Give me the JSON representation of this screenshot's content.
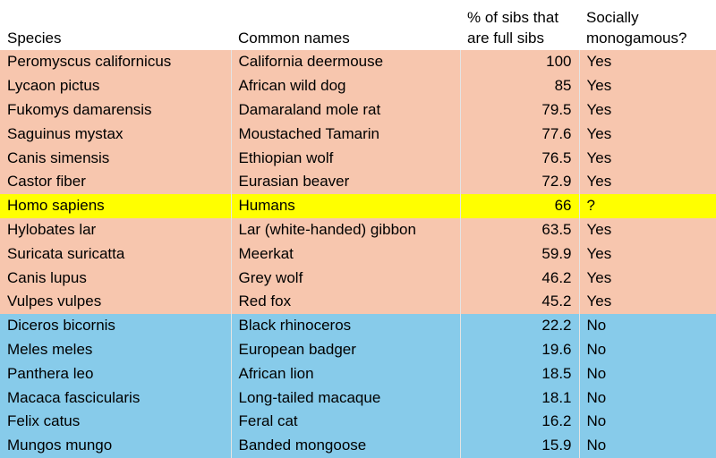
{
  "headers": {
    "species": "Species",
    "common_names": "Common names",
    "pct_full_line1": "% of sibs that",
    "pct_full_line2": "are full sibs",
    "monogamous_line1": "Socially",
    "monogamous_line2": "monogamous?"
  },
  "colors": {
    "monogamous_row": "#f7c6ae",
    "human_row": "#ffff00",
    "non_monogamous_row": "#87cbea"
  },
  "rows": [
    {
      "group": "mono",
      "species": "Peromyscus californicus",
      "common": "California deermouse",
      "pct": "100",
      "monogamous": "Yes"
    },
    {
      "group": "mono",
      "species": "Lycaon pictus",
      "common": "African wild dog",
      "pct": "85",
      "monogamous": "Yes"
    },
    {
      "group": "mono",
      "species": "Fukomys damarensis",
      "common": "Damaraland mole rat",
      "pct": "79.5",
      "monogamous": "Yes"
    },
    {
      "group": "mono",
      "species": "Saguinus mystax",
      "common": "Moustached Tamarin",
      "pct": "77.6",
      "monogamous": "Yes"
    },
    {
      "group": "mono",
      "species": "Canis simensis",
      "common": "Ethiopian wolf",
      "pct": "76.5",
      "monogamous": "Yes"
    },
    {
      "group": "mono",
      "species": "Castor fiber",
      "common": "Eurasian beaver",
      "pct": "72.9",
      "monogamous": "Yes"
    },
    {
      "group": "human",
      "species": "Homo sapiens",
      "common": "Humans",
      "pct": "66",
      "monogamous": "?"
    },
    {
      "group": "mono",
      "species": "Hylobates lar",
      "common": "Lar (white-handed) gibbon",
      "pct": "63.5",
      "monogamous": "Yes"
    },
    {
      "group": "mono",
      "species": "Suricata suricatta",
      "common": "Meerkat",
      "pct": "59.9",
      "monogamous": "Yes"
    },
    {
      "group": "mono",
      "species": "Canis lupus",
      "common": "Grey wolf",
      "pct": "46.2",
      "monogamous": "Yes"
    },
    {
      "group": "mono",
      "species": "Vulpes vulpes",
      "common": "Red fox",
      "pct": "45.2",
      "monogamous": "Yes"
    },
    {
      "group": "nonmono",
      "species": "Diceros bicornis",
      "common": "Black rhinoceros",
      "pct": "22.2",
      "monogamous": "No"
    },
    {
      "group": "nonmono",
      "species": "Meles meles",
      "common": "European badger",
      "pct": "19.6",
      "monogamous": "No"
    },
    {
      "group": "nonmono",
      "species": "Panthera leo",
      "common": "African lion",
      "pct": "18.5",
      "monogamous": "No"
    },
    {
      "group": "nonmono",
      "species": "Macaca fascicularis",
      "common": "Long-tailed macaque",
      "pct": "18.1",
      "monogamous": "No"
    },
    {
      "group": "nonmono",
      "species": "Felix catus",
      "common": "Feral cat",
      "pct": "16.2",
      "monogamous": "No"
    },
    {
      "group": "nonmono",
      "species": "Mungos mungo",
      "common": "Banded mongoose",
      "pct": "15.9",
      "monogamous": "No"
    }
  ]
}
